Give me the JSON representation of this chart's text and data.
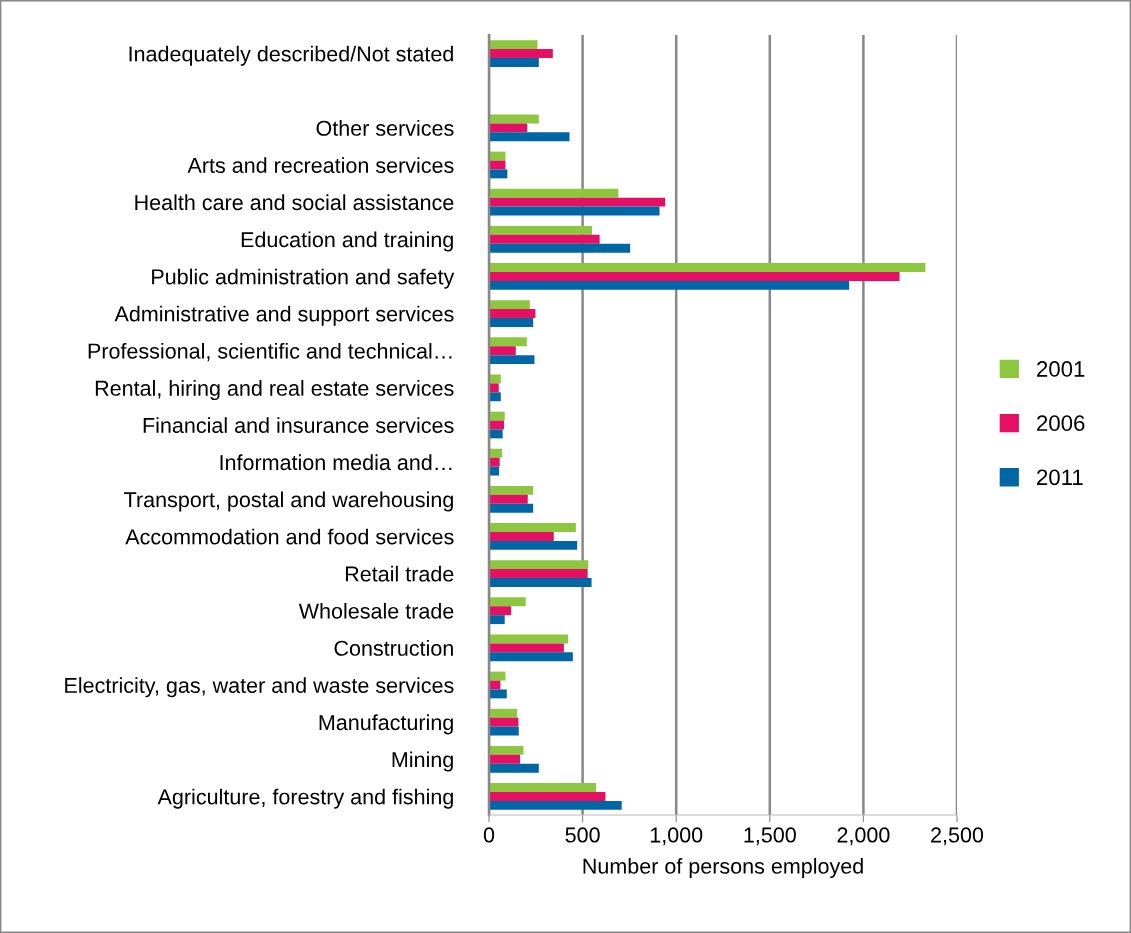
{
  "chart_data": {
    "type": "bar",
    "orientation": "horizontal",
    "xlabel": "Number of persons employed",
    "categories": [
      "Inadequately described/Not stated",
      null,
      "Other services",
      "Arts and recreation services",
      "Health care and social assistance",
      "Education and training",
      "Public administration and safety",
      "Administrative and support services",
      "Professional, scientific and technical…",
      "Rental, hiring and real estate services",
      "Financial and insurance services",
      "Information media and…",
      "Transport, postal and warehousing",
      "Accommodation and food services",
      "Retail trade",
      "Wholesale trade",
      "Construction",
      "Electricity, gas, water and waste services",
      "Manufacturing",
      "Mining",
      "Agriculture, forestry and fishing"
    ],
    "series": [
      {
        "name": "2001",
        "color": "#8dc63f",
        "values": [
          259,
          null,
          266,
          88,
          691,
          550,
          2331,
          218,
          202,
          63,
          84,
          70,
          236,
          464,
          530,
          196,
          423,
          88,
          150,
          184,
          572
        ]
      },
      {
        "name": "2006",
        "color": "#e50f63",
        "values": [
          341,
          null,
          204,
          88,
          941,
          591,
          2193,
          248,
          143,
          52,
          80,
          57,
          207,
          346,
          527,
          118,
          400,
          61,
          157,
          166,
          622
        ]
      },
      {
        "name": "2011",
        "color": "#0066a5",
        "values": [
          266,
          null,
          430,
          98,
          911,
          754,
          1924,
          236,
          243,
          63,
          73,
          54,
          236,
          471,
          548,
          84,
          448,
          95,
          159,
          266,
          709
        ]
      }
    ],
    "xlim": [
      0,
      2500
    ],
    "xticks": [
      {
        "value": 0,
        "label": "0"
      },
      {
        "value": 500,
        "label": "500"
      },
      {
        "value": 1000,
        "label": "1,000"
      },
      {
        "value": 1500,
        "label": "1,500"
      },
      {
        "value": 2000,
        "label": "2,000"
      },
      {
        "value": 2500,
        "label": "2,500"
      }
    ],
    "grid": "x",
    "legend": "right"
  }
}
